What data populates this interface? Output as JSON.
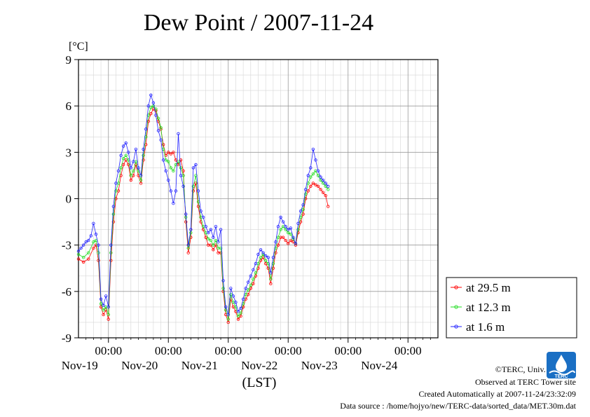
{
  "page": {
    "title": "Dew Point / 2007-11-24",
    "credits": {
      "copyright": "©TERC, Univ. Tsukuba",
      "observed": "Observed at TERC Tower site",
      "created": "Created Automatically at 2007-11-24/23:32:09",
      "source": "Data source : /home/hojyo/new/TERC-data/sorted_data/MET.30m.dat"
    },
    "logo": {
      "name": "terc-logo",
      "text": "TERC",
      "color": "#1a6fc4"
    }
  },
  "chart_data": {
    "type": "line",
    "title": "Dew Point / 2007-11-24",
    "ylabel": "[°C]",
    "xlabel": "(LST)",
    "ylim": [
      -9,
      9
    ],
    "yticks": [
      9,
      6,
      3,
      0,
      -3,
      -6,
      -9
    ],
    "xlim": [
      0,
      144
    ],
    "x_unit": "hours from Nov-18 12:00 LST",
    "day_ticks": [
      {
        "x": 12,
        "time": "00:00",
        "date": "Nov-19"
      },
      {
        "x": 36,
        "time": "00:00",
        "date": "Nov-20"
      },
      {
        "x": 60,
        "time": "00:00",
        "date": "Nov-21"
      },
      {
        "x": 84,
        "time": "00:00",
        "date": "Nov-22"
      },
      {
        "x": 108,
        "time": "00:00",
        "date": "Nov-23"
      },
      {
        "x": 132,
        "time": "00:00",
        "date": "Nov-24"
      }
    ],
    "grid": true,
    "legend_position": "right",
    "series": [
      {
        "name": "at 29.5 m",
        "color": "#ff0000",
        "points": [
          [
            0,
            -3.9
          ],
          [
            2,
            -4.1
          ],
          [
            4,
            -3.9
          ],
          [
            6,
            -3.2
          ],
          [
            7,
            -3.0
          ],
          [
            8,
            -4.0
          ],
          [
            9,
            -7.0
          ],
          [
            10,
            -7.5
          ],
          [
            11,
            -7.2
          ],
          [
            12,
            -7.8
          ],
          [
            13,
            -4.0
          ],
          [
            14,
            -1.5
          ],
          [
            15,
            0.0
          ],
          [
            16,
            0.5
          ],
          [
            17,
            1.5
          ],
          [
            18,
            2.2
          ],
          [
            19,
            2.5
          ],
          [
            20,
            2.2
          ],
          [
            21,
            1.2
          ],
          [
            22,
            1.5
          ],
          [
            23,
            2.2
          ],
          [
            24,
            1.5
          ],
          [
            25,
            1.0
          ],
          [
            26,
            2.5
          ],
          [
            27,
            3.5
          ],
          [
            28,
            5.0
          ],
          [
            29,
            5.5
          ],
          [
            30,
            5.8
          ],
          [
            31,
            5.7
          ],
          [
            32,
            5.0
          ],
          [
            33,
            4.5
          ],
          [
            34,
            3.5
          ],
          [
            35,
            2.8
          ],
          [
            36,
            3.0
          ],
          [
            37,
            2.9
          ],
          [
            38,
            3.0
          ],
          [
            39,
            2.5
          ],
          [
            40,
            2.2
          ],
          [
            41,
            2.5
          ],
          [
            42,
            1.8
          ],
          [
            43,
            -1.5
          ],
          [
            44,
            -3.5
          ],
          [
            45,
            -2.5
          ],
          [
            46,
            0.5
          ],
          [
            47,
            1.0
          ],
          [
            48,
            -0.5
          ],
          [
            49,
            -1.5
          ],
          [
            50,
            -2.0
          ],
          [
            51,
            -2.5
          ],
          [
            52,
            -3.0
          ],
          [
            53,
            -3.0
          ],
          [
            54,
            -3.3
          ],
          [
            55,
            -3.0
          ],
          [
            56,
            -3.5
          ],
          [
            57,
            -3.5
          ],
          [
            58,
            -6.0
          ],
          [
            59,
            -7.5
          ],
          [
            60,
            -8.0
          ],
          [
            61,
            -6.5
          ],
          [
            62,
            -7.0
          ],
          [
            63,
            -7.3
          ],
          [
            64,
            -7.8
          ],
          [
            65,
            -7.6
          ],
          [
            66,
            -7.0
          ],
          [
            67,
            -6.5
          ],
          [
            68,
            -6.2
          ],
          [
            69,
            -5.8
          ],
          [
            70,
            -5.5
          ],
          [
            71,
            -5.0
          ],
          [
            72,
            -4.5
          ],
          [
            73,
            -4.0
          ],
          [
            74,
            -3.8
          ],
          [
            75,
            -4.2
          ],
          [
            76,
            -4.5
          ],
          [
            77,
            -5.5
          ],
          [
            78,
            -4.5
          ],
          [
            79,
            -3.5
          ],
          [
            80,
            -3.0
          ],
          [
            81,
            -2.5
          ],
          [
            82,
            -2.5
          ],
          [
            83,
            -2.7
          ],
          [
            84,
            -2.9
          ],
          [
            85,
            -2.7
          ],
          [
            86,
            -2.8
          ],
          [
            87,
            -3.0
          ],
          [
            88,
            -2.2
          ],
          [
            89,
            -1.5
          ],
          [
            90,
            -1.0
          ],
          [
            91,
            0.0
          ],
          [
            92,
            0.5
          ],
          [
            93,
            0.8
          ],
          [
            94,
            1.0
          ],
          [
            95,
            0.9
          ],
          [
            96,
            0.8
          ],
          [
            97,
            0.6
          ],
          [
            98,
            0.4
          ],
          [
            99,
            0.2
          ],
          [
            100,
            -0.5
          ]
        ]
      },
      {
        "name": "at 12.3 m",
        "color": "#22dd22",
        "points": [
          [
            0,
            -3.6
          ],
          [
            2,
            -3.8
          ],
          [
            4,
            -3.5
          ],
          [
            6,
            -2.8
          ],
          [
            7,
            -2.7
          ],
          [
            8,
            -3.5
          ],
          [
            9,
            -6.8
          ],
          [
            10,
            -7.2
          ],
          [
            11,
            -7.0
          ],
          [
            12,
            -7.5
          ],
          [
            13,
            -3.5
          ],
          [
            14,
            -1.0
          ],
          [
            15,
            0.5
          ],
          [
            16,
            1.0
          ],
          [
            17,
            2.0
          ],
          [
            18,
            2.6
          ],
          [
            19,
            2.8
          ],
          [
            20,
            2.5
          ],
          [
            21,
            1.5
          ],
          [
            22,
            1.8
          ],
          [
            23,
            2.4
          ],
          [
            24,
            1.8
          ],
          [
            25,
            1.2
          ],
          [
            26,
            2.8
          ],
          [
            27,
            4.0
          ],
          [
            28,
            5.4
          ],
          [
            29,
            5.9
          ],
          [
            30,
            6.0
          ],
          [
            31,
            5.8
          ],
          [
            32,
            5.2
          ],
          [
            33,
            4.6
          ],
          [
            34,
            3.2
          ],
          [
            35,
            2.5
          ],
          [
            36,
            2.4
          ],
          [
            37,
            2.0
          ],
          [
            38,
            1.8
          ],
          [
            39,
            2.2
          ],
          [
            40,
            2.4
          ],
          [
            41,
            2.0
          ],
          [
            42,
            1.5
          ],
          [
            43,
            -1.2
          ],
          [
            44,
            -3.2
          ],
          [
            45,
            -2.2
          ],
          [
            46,
            0.8
          ],
          [
            47,
            1.5
          ],
          [
            48,
            -0.2
          ],
          [
            49,
            -1.2
          ],
          [
            50,
            -1.8
          ],
          [
            51,
            -2.2
          ],
          [
            52,
            -2.6
          ],
          [
            53,
            -2.7
          ],
          [
            54,
            -3.0
          ],
          [
            55,
            -2.7
          ],
          [
            56,
            -3.2
          ],
          [
            57,
            -3.2
          ],
          [
            58,
            -5.8
          ],
          [
            59,
            -7.2
          ],
          [
            60,
            -7.8
          ],
          [
            61,
            -6.2
          ],
          [
            62,
            -6.7
          ],
          [
            63,
            -7.0
          ],
          [
            64,
            -7.6
          ],
          [
            65,
            -7.4
          ],
          [
            66,
            -6.8
          ],
          [
            67,
            -6.2
          ],
          [
            68,
            -5.9
          ],
          [
            69,
            -5.6
          ],
          [
            70,
            -5.2
          ],
          [
            71,
            -4.8
          ],
          [
            72,
            -4.2
          ],
          [
            73,
            -3.8
          ],
          [
            74,
            -3.6
          ],
          [
            75,
            -4.0
          ],
          [
            76,
            -4.2
          ],
          [
            77,
            -5.2
          ],
          [
            78,
            -4.2
          ],
          [
            79,
            -3.2
          ],
          [
            80,
            -2.5
          ],
          [
            81,
            -2.0
          ],
          [
            82,
            -1.8
          ],
          [
            83,
            -2.0
          ],
          [
            84,
            -2.2
          ],
          [
            85,
            -2.3
          ],
          [
            86,
            -2.6
          ],
          [
            87,
            -2.9
          ],
          [
            88,
            -2.0
          ],
          [
            89,
            -1.2
          ],
          [
            90,
            -0.7
          ],
          [
            91,
            0.3
          ],
          [
            92,
            1.0
          ],
          [
            93,
            1.4
          ],
          [
            94,
            1.6
          ],
          [
            95,
            1.8
          ],
          [
            96,
            1.5
          ],
          [
            97,
            1.2
          ],
          [
            98,
            1.0
          ],
          [
            99,
            0.8
          ],
          [
            100,
            0.6
          ]
        ]
      },
      {
        "name": "at 1.6 m",
        "color": "#2222ff",
        "points": [
          [
            0,
            -3.4
          ],
          [
            1,
            -3.2
          ],
          [
            2,
            -3.0
          ],
          [
            3,
            -2.8
          ],
          [
            4,
            -2.7
          ],
          [
            5,
            -2.4
          ],
          [
            6,
            -1.6
          ],
          [
            7,
            -2.3
          ],
          [
            8,
            -3.0
          ],
          [
            9,
            -6.5
          ],
          [
            10,
            -6.9
          ],
          [
            11,
            -6.3
          ],
          [
            12,
            -7.0
          ],
          [
            13,
            -3.0
          ],
          [
            14,
            -0.5
          ],
          [
            15,
            1.0
          ],
          [
            16,
            1.8
          ],
          [
            17,
            2.8
          ],
          [
            18,
            3.4
          ],
          [
            19,
            3.6
          ],
          [
            20,
            3.0
          ],
          [
            21,
            2.0
          ],
          [
            22,
            2.4
          ],
          [
            23,
            3.2
          ],
          [
            24,
            2.0
          ],
          [
            25,
            1.5
          ],
          [
            26,
            3.2
          ],
          [
            27,
            4.5
          ],
          [
            28,
            6.0
          ],
          [
            29,
            6.7
          ],
          [
            30,
            6.2
          ],
          [
            31,
            5.4
          ],
          [
            32,
            4.4
          ],
          [
            33,
            3.8
          ],
          [
            34,
            2.5
          ],
          [
            35,
            1.8
          ],
          [
            36,
            1.2
          ],
          [
            37,
            0.5
          ],
          [
            38,
            -0.3
          ],
          [
            39,
            0.5
          ],
          [
            40,
            4.2
          ],
          [
            41,
            1.5
          ],
          [
            42,
            0.8
          ],
          [
            43,
            -1.0
          ],
          [
            44,
            -3.0
          ],
          [
            45,
            -2.0
          ],
          [
            46,
            2.0
          ],
          [
            47,
            2.2
          ],
          [
            48,
            0.5
          ],
          [
            49,
            -0.8
          ],
          [
            50,
            -1.2
          ],
          [
            51,
            -1.8
          ],
          [
            52,
            -2.2
          ],
          [
            53,
            -2.0
          ],
          [
            54,
            -2.5
          ],
          [
            55,
            -1.8
          ],
          [
            56,
            -2.8
          ],
          [
            57,
            -2.0
          ],
          [
            58,
            -5.3
          ],
          [
            59,
            -7.0
          ],
          [
            60,
            -7.5
          ],
          [
            61,
            -5.8
          ],
          [
            62,
            -6.3
          ],
          [
            63,
            -6.7
          ],
          [
            64,
            -7.3
          ],
          [
            65,
            -7.1
          ],
          [
            66,
            -6.5
          ],
          [
            67,
            -5.8
          ],
          [
            68,
            -5.4
          ],
          [
            69,
            -5.0
          ],
          [
            70,
            -4.6
          ],
          [
            71,
            -4.2
          ],
          [
            72,
            -3.6
          ],
          [
            73,
            -3.3
          ],
          [
            74,
            -3.5
          ],
          [
            75,
            -3.7
          ],
          [
            76,
            -3.8
          ],
          [
            77,
            -4.8
          ],
          [
            78,
            -3.8
          ],
          [
            79,
            -2.8
          ],
          [
            80,
            -1.8
          ],
          [
            81,
            -1.2
          ],
          [
            82,
            -1.5
          ],
          [
            83,
            -1.8
          ],
          [
            84,
            -2.0
          ],
          [
            85,
            -1.9
          ],
          [
            86,
            -2.5
          ],
          [
            87,
            -2.9
          ],
          [
            88,
            -1.6
          ],
          [
            89,
            -0.8
          ],
          [
            90,
            -0.4
          ],
          [
            91,
            0.6
          ],
          [
            92,
            1.5
          ],
          [
            93,
            2.0
          ],
          [
            94,
            3.2
          ],
          [
            95,
            2.5
          ],
          [
            96,
            1.8
          ],
          [
            97,
            1.4
          ],
          [
            98,
            1.2
          ],
          [
            99,
            1.0
          ],
          [
            100,
            0.8
          ]
        ]
      }
    ]
  }
}
